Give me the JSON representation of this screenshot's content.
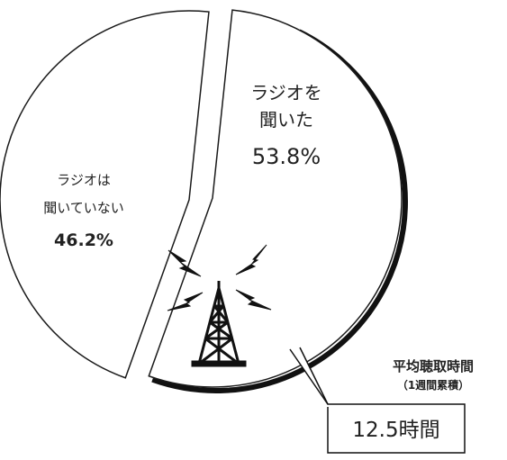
{
  "chart_data": {
    "type": "pie",
    "slices": [
      {
        "label_line1": "ラジオを",
        "label_line2": "聞いた",
        "value": 53.8,
        "value_label": "53.8%"
      },
      {
        "label_line1": "ラジオは",
        "label_line2": "聞いていない",
        "value": 46.2,
        "value_label": "46.2%"
      }
    ],
    "callout": {
      "title": "平均聴取時間",
      "note": "（1週間累積）",
      "value": "12.5時間"
    },
    "colors": {
      "fill": "#ffffff",
      "stroke": "#1a1a1a",
      "shadow": "#111111"
    },
    "icon": "radio-tower-icon"
  }
}
